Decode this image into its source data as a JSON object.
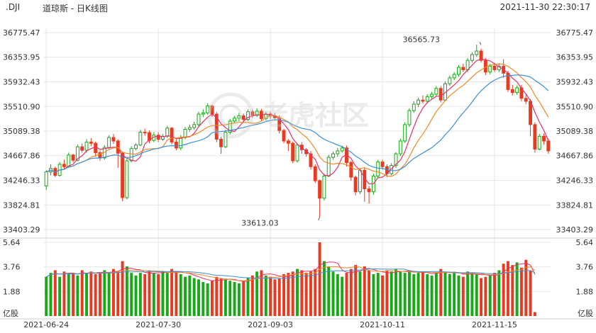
{
  "header": {
    "symbol": ".DJI",
    "title": "道琼斯 - 日K线图",
    "timestamp": "2021-11-30 22:30:17"
  },
  "watermark": {
    "text": "老虎社区"
  },
  "colors": {
    "up": "#18a818",
    "down": "#e83a20",
    "ma5": "#e8306a",
    "ma10": "#f08a28",
    "ma20": "#3b8fd4",
    "grid": "#e6e6e6",
    "axis_text": "#333333"
  },
  "chart_data": [
    {
      "type": "candlestick",
      "title": "",
      "y_ticks": [
        36775.47,
        36353.95,
        35932.43,
        35510.9,
        35089.38,
        34667.86,
        34246.33,
        33824.81,
        33403.29
      ],
      "y_tick_labels": [
        "36775.47",
        "36353.95",
        "35932.43",
        "35510.90",
        "35089.38",
        "34667.86",
        "34246.33",
        "33824.81",
        "33403.29"
      ],
      "ylim": [
        33403.29,
        36775.47
      ],
      "x_tick_labels": [
        "2021-06-24",
        "2021-07-30",
        "2021-09-03",
        "2021-10-11",
        "2021-11-15"
      ],
      "x_tick_index": [
        0,
        25,
        50,
        75,
        100
      ],
      "annotations": [
        {
          "text": "36565.73",
          "index": 97,
          "value": 36565.73
        },
        {
          "text": "33613.03",
          "index": 61,
          "value": 33613.03
        }
      ],
      "ma_colors_note": "three moving average lines",
      "candles": [
        [
          34150,
          34390,
          34080,
          34420
        ],
        [
          34390,
          34450,
          34330,
          34520
        ],
        [
          34450,
          34330,
          34300,
          34480
        ],
        [
          34330,
          34520,
          34310,
          34560
        ],
        [
          34520,
          34480,
          34440,
          34600
        ],
        [
          34480,
          34680,
          34460,
          34720
        ],
        [
          34680,
          34590,
          34550,
          34700
        ],
        [
          34590,
          34820,
          34570,
          34860
        ],
        [
          34820,
          34760,
          34720,
          34880
        ],
        [
          34760,
          34900,
          34720,
          34950
        ],
        [
          34900,
          34880,
          34830,
          34970
        ],
        [
          34880,
          34720,
          34650,
          34910
        ],
        [
          34720,
          34630,
          34580,
          34760
        ],
        [
          34630,
          34810,
          34600,
          34850
        ],
        [
          34810,
          34980,
          34780,
          35020
        ],
        [
          34980,
          34920,
          34870,
          35040
        ],
        [
          34920,
          34710,
          34460,
          34950
        ],
        [
          34710,
          33950,
          33890,
          34740
        ],
        [
          33950,
          34580,
          33920,
          34620
        ],
        [
          34580,
          34790,
          34560,
          34830
        ],
        [
          34790,
          34850,
          34760,
          34880
        ],
        [
          34850,
          35070,
          34830,
          35110
        ],
        [
          35070,
          35060,
          35010,
          35130
        ],
        [
          35060,
          34930,
          34880,
          35100
        ],
        [
          34930,
          35020,
          34900,
          35070
        ],
        [
          35020,
          34950,
          34900,
          35070
        ],
        [
          34950,
          35000,
          34920,
          35040
        ],
        [
          35000,
          35140,
          34970,
          35180
        ],
        [
          35140,
          34900,
          34860,
          35160
        ],
        [
          34900,
          34800,
          34760,
          34950
        ],
        [
          34800,
          34980,
          34760,
          35020
        ],
        [
          34980,
          35120,
          34950,
          35160
        ],
        [
          35120,
          35150,
          35080,
          35200
        ],
        [
          35150,
          35200,
          35110,
          35250
        ],
        [
          35200,
          35380,
          35170,
          35420
        ],
        [
          35380,
          35400,
          35330,
          35460
        ],
        [
          35400,
          35520,
          35370,
          35560
        ],
        [
          35520,
          35380,
          35330,
          35540
        ],
        [
          35380,
          34950,
          34900,
          35420
        ],
        [
          34950,
          34820,
          34700,
          34990
        ],
        [
          34820,
          35070,
          34800,
          35110
        ],
        [
          35070,
          35260,
          35030,
          35300
        ],
        [
          35260,
          35310,
          35220,
          35350
        ],
        [
          35310,
          35350,
          35260,
          35400
        ],
        [
          35350,
          35290,
          35240,
          35390
        ],
        [
          35290,
          35420,
          35260,
          35460
        ],
        [
          35420,
          35360,
          35320,
          35460
        ],
        [
          35360,
          35430,
          35330,
          35480
        ],
        [
          35430,
          35300,
          35260,
          35470
        ],
        [
          35300,
          35380,
          35270,
          35420
        ],
        [
          35380,
          35350,
          35300,
          35420
        ],
        [
          35350,
          35320,
          35270,
          35400
        ],
        [
          35320,
          35100,
          35050,
          35360
        ],
        [
          35100,
          34920,
          34880,
          35130
        ],
        [
          34920,
          34880,
          34750,
          34950
        ],
        [
          34880,
          34580,
          34540,
          34910
        ],
        [
          34580,
          34850,
          34550,
          34880
        ],
        [
          34850,
          34770,
          34700,
          34900
        ],
        [
          34770,
          34700,
          34650,
          34800
        ],
        [
          34700,
          34480,
          34430,
          34750
        ],
        [
          34480,
          34240,
          34200,
          34520
        ],
        [
          34240,
          33940,
          33613,
          34260
        ],
        [
          33940,
          34320,
          33900,
          34360
        ],
        [
          34320,
          34640,
          34300,
          34680
        ],
        [
          34640,
          34700,
          34600,
          34740
        ],
        [
          34700,
          34750,
          34650,
          34800
        ],
        [
          34750,
          34800,
          34720,
          34840
        ],
        [
          34800,
          34550,
          34480,
          34840
        ],
        [
          34550,
          34300,
          34240,
          34580
        ],
        [
          34300,
          34050,
          33990,
          34330
        ],
        [
          34050,
          34420,
          34010,
          34460
        ],
        [
          34420,
          34100,
          33880,
          34460
        ],
        [
          34100,
          34050,
          33850,
          34150
        ],
        [
          34050,
          34320,
          34000,
          34360
        ],
        [
          34320,
          34560,
          34280,
          34600
        ],
        [
          34560,
          34480,
          34430,
          34600
        ],
        [
          34480,
          34360,
          34300,
          34520
        ],
        [
          34360,
          34500,
          34330,
          34540
        ],
        [
          34500,
          34700,
          34460,
          34730
        ],
        [
          34700,
          34920,
          34660,
          34960
        ],
        [
          34920,
          35200,
          34890,
          35240
        ],
        [
          35200,
          35440,
          35160,
          35480
        ],
        [
          35440,
          35550,
          35400,
          35600
        ],
        [
          35550,
          35620,
          35500,
          35660
        ],
        [
          35620,
          35600,
          35560,
          35700
        ],
        [
          35600,
          35680,
          35560,
          35720
        ],
        [
          35680,
          35720,
          35640,
          35760
        ],
        [
          35720,
          35820,
          35680,
          35860
        ],
        [
          35820,
          35620,
          35580,
          35860
        ],
        [
          35620,
          35900,
          35600,
          35940
        ],
        [
          35900,
          36000,
          35860,
          36040
        ],
        [
          36000,
          36060,
          35960,
          36100
        ],
        [
          36060,
          36180,
          36020,
          36220
        ],
        [
          36180,
          36140,
          36100,
          36240
        ],
        [
          36140,
          36300,
          36100,
          36340
        ],
        [
          36300,
          36400,
          36260,
          36440
        ],
        [
          36400,
          36460,
          36360,
          36566
        ],
        [
          36460,
          36300,
          36260,
          36500
        ],
        [
          36300,
          36100,
          36050,
          36340
        ],
        [
          36100,
          36200,
          36060,
          36240
        ],
        [
          36200,
          36140,
          36100,
          36260
        ],
        [
          36140,
          36200,
          36100,
          36240
        ],
        [
          36200,
          36080,
          36000,
          36320
        ],
        [
          36080,
          35800,
          35760,
          36120
        ],
        [
          35800,
          35750,
          35700,
          35880
        ],
        [
          35750,
          35830,
          35710,
          35870
        ],
        [
          35830,
          35650,
          35600,
          35880
        ],
        [
          35650,
          35600,
          35550,
          35720
        ],
        [
          35600,
          35200,
          35000,
          35640
        ],
        [
          35200,
          34780,
          34720,
          35240
        ],
        [
          34780,
          35000,
          34760,
          35040
        ],
        [
          35000,
          34920,
          34860,
          35050
        ],
        [
          34920,
          34750,
          34700,
          34960
        ]
      ],
      "volume": {
        "y_tick_labels": [
          "5.64",
          "3.76",
          "1.88"
        ],
        "ylim": [
          0,
          5.64
        ],
        "unit_label": "亿股",
        "values": [
          3.0,
          3.3,
          3.5,
          3.0,
          3.4,
          3.2,
          3.3,
          3.1,
          3.5,
          3.3,
          3.4,
          3.2,
          3.3,
          3.5,
          3.3,
          3.6,
          3.4,
          4.2,
          3.8,
          3.3,
          3.1,
          3.3,
          3.2,
          3.5,
          3.3,
          3.2,
          3.4,
          3.3,
          3.6,
          3.4,
          3.2,
          3.0,
          3.1,
          2.9,
          2.8,
          2.6,
          2.5,
          2.7,
          3.0,
          2.9,
          2.8,
          2.7,
          2.6,
          2.5,
          2.7,
          2.9,
          3.1,
          3.4,
          3.5,
          3.1,
          3.0,
          2.8,
          2.9,
          3.2,
          3.3,
          3.4,
          3.6,
          3.5,
          3.3,
          3.4,
          3.6,
          5.64,
          4.2,
          3.8,
          3.4,
          3.2,
          3.0,
          3.3,
          3.6,
          3.9,
          3.4,
          3.8,
          3.5,
          3.2,
          3.3,
          3.1,
          3.5,
          3.4,
          3.6,
          3.4,
          3.3,
          3.5,
          3.2,
          3.3,
          3.4,
          3.2,
          3.1,
          3.3,
          3.6,
          3.4,
          3.2,
          3.3,
          3.1,
          3.0,
          3.4,
          3.3,
          3.2,
          2.9,
          3.0,
          3.1,
          3.3,
          3.5,
          4.0,
          4.2,
          3.9,
          4.1,
          3.7,
          4.3,
          3.5,
          0.3
        ]
      }
    }
  ]
}
